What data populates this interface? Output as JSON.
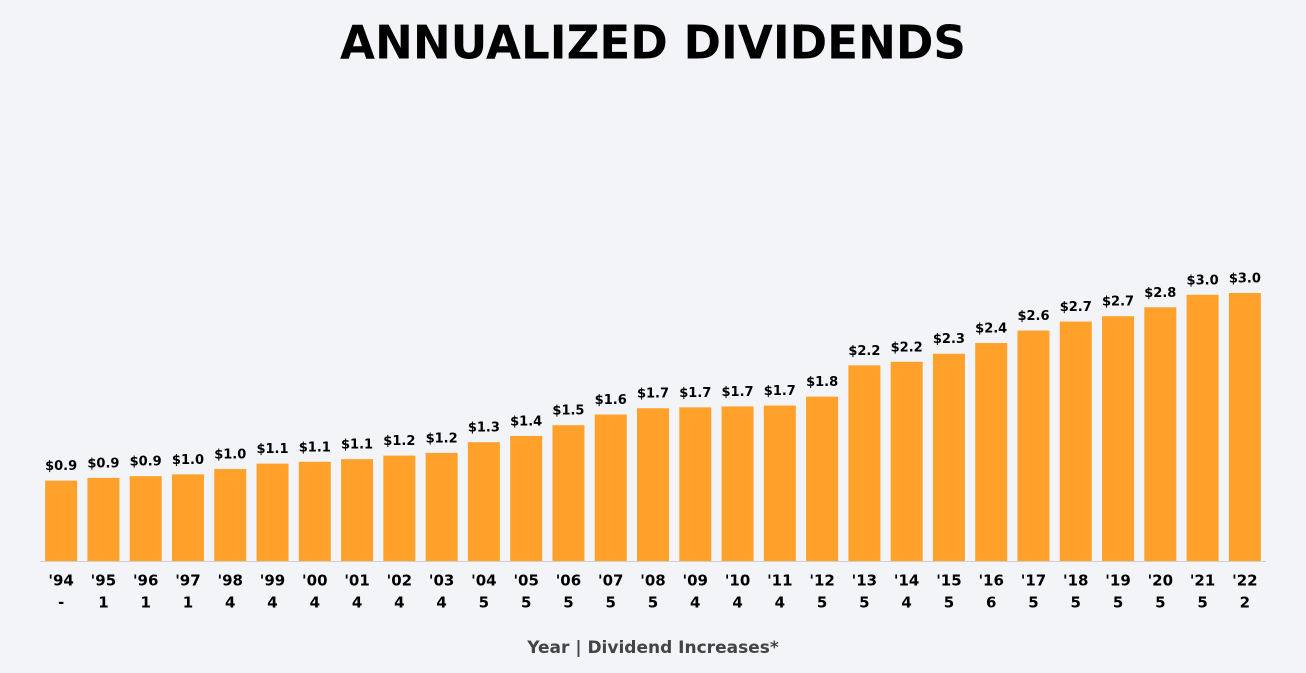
{
  "chart_data": {
    "type": "bar",
    "title": "ANNUALIZED DIVIDENDS",
    "x_label": "Year | Dividend Increases*",
    "categories": [
      "'94",
      "'95",
      "'96",
      "'97",
      "'98",
      "'99",
      "'00",
      "'01",
      "'02",
      "'03",
      "'04",
      "'05",
      "'06",
      "'07",
      "'08",
      "'09",
      "'10",
      "'11",
      "'12",
      "'13",
      "'14",
      "'15",
      "'16",
      "'17",
      "'18",
      "'19",
      "'20",
      "'21",
      "'22"
    ],
    "dividend_increases": [
      "-",
      "1",
      "1",
      "1",
      "4",
      "4",
      "4",
      "4",
      "4",
      "4",
      "5",
      "5",
      "5",
      "5",
      "5",
      "4",
      "4",
      "4",
      "5",
      "5",
      "4",
      "5",
      "6",
      "5",
      "5",
      "5",
      "5",
      "5",
      "2"
    ],
    "values": [
      0.9,
      0.93,
      0.95,
      0.97,
      1.03,
      1.09,
      1.11,
      1.14,
      1.18,
      1.21,
      1.33,
      1.4,
      1.52,
      1.64,
      1.71,
      1.72,
      1.73,
      1.74,
      1.84,
      2.19,
      2.23,
      2.32,
      2.44,
      2.58,
      2.68,
      2.74,
      2.84,
      2.98,
      3.0
    ],
    "value_labels": [
      "$0.9",
      "$0.9",
      "$0.9",
      "$1.0",
      "$1.0",
      "$1.1",
      "$1.1",
      "$1.1",
      "$1.2",
      "$1.2",
      "$1.3",
      "$1.4",
      "$1.5",
      "$1.6",
      "$1.7",
      "$1.7",
      "$1.7",
      "$1.7",
      "$1.8",
      "$2.2",
      "$2.2",
      "$2.3",
      "$2.4",
      "$2.6",
      "$2.7",
      "$2.7",
      "$2.8",
      "$3.0",
      "$3.0"
    ],
    "color": "#ffa12b"
  }
}
